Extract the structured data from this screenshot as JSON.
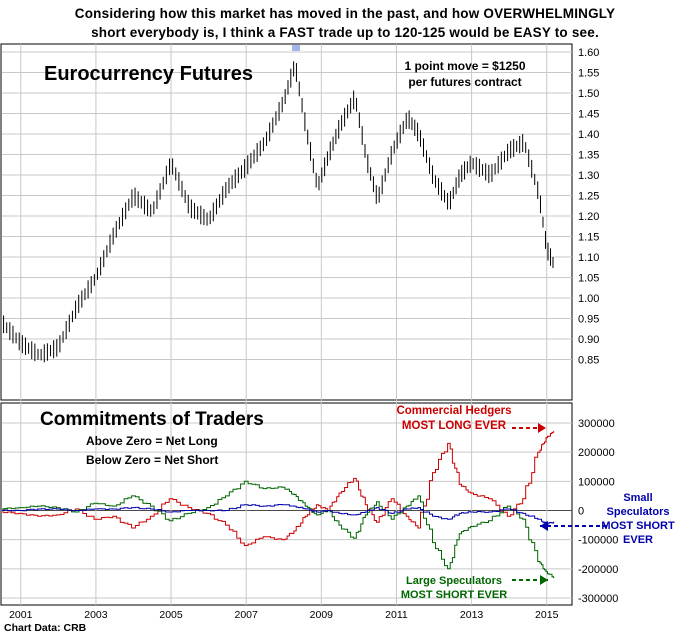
{
  "headline": [
    "Considering how this market has moved in the past, and how OVERWHELMINGLY",
    "short everybody is, I think a FAST trade up to 120-125 would be EASY to see."
  ],
  "credit": "Chart Data: CRB",
  "colors": {
    "price": "#000000",
    "commercials": "#cc0000",
    "large_specs": "#006600",
    "small_specs": "#0000aa",
    "grid": "#c8c8c8",
    "zero_line": "#4a4a4a",
    "peak_highlight": "#9fb7e8"
  },
  "chart_data": [
    {
      "type": "bar",
      "subtype": "ohlc",
      "title": "Eurocurrency Futures",
      "annotation": [
        "1 point move = $1250",
        "per futures contract"
      ],
      "ylim": [
        0.8,
        1.6
      ],
      "yticks": [
        "1.60",
        "1.55",
        "1.50",
        "1.45",
        "1.40",
        "1.35",
        "1.30",
        "1.25",
        "1.20",
        "1.15",
        "1.10",
        "1.05",
        "1.00",
        "0.95",
        "0.90",
        "0.85"
      ],
      "x_range": [
        2000.5,
        2015.3
      ],
      "series": [
        {
          "x": [
            2000.5,
            2001.0,
            2001.5,
            2002.0,
            2002.5,
            2003.0,
            2003.5,
            2004.0,
            2004.5,
            2005.0,
            2005.5,
            2006.0,
            2006.5,
            2007.0,
            2007.5,
            2008.0,
            2008.3,
            2008.6,
            2008.9,
            2009.2,
            2009.5,
            2009.9,
            2010.2,
            2010.5,
            2010.9,
            2011.3,
            2011.6,
            2012.0,
            2012.4,
            2012.7,
            2013.0,
            2013.5,
            2014.0,
            2014.4,
            2014.8,
            2015.0,
            2015.2
          ],
          "close": [
            0.94,
            0.89,
            0.86,
            0.88,
            0.98,
            1.05,
            1.16,
            1.25,
            1.21,
            1.33,
            1.22,
            1.19,
            1.27,
            1.32,
            1.38,
            1.48,
            1.57,
            1.41,
            1.27,
            1.35,
            1.42,
            1.49,
            1.34,
            1.24,
            1.36,
            1.44,
            1.4,
            1.29,
            1.23,
            1.3,
            1.33,
            1.3,
            1.36,
            1.38,
            1.25,
            1.12,
            1.08
          ]
        }
      ]
    },
    {
      "type": "line",
      "title": "Commitments of Traders",
      "annotation": [
        "Above Zero = Net Long",
        "Below Zero = Net Short"
      ],
      "ylim": [
        -300000,
        300000
      ],
      "yticks": [
        "300000",
        "200000",
        "100000",
        "0",
        "-100000",
        "-200000",
        "-300000"
      ],
      "x_range": [
        2000.5,
        2015.3
      ],
      "x_ticks": [
        "2001",
        "2003",
        "2005",
        "2007",
        "2009",
        "2011",
        "2013",
        "2015"
      ],
      "x": [
        2000.5,
        2001.0,
        2001.5,
        2002.0,
        2002.5,
        2003.0,
        2003.5,
        2004.0,
        2004.5,
        2005.0,
        2005.5,
        2006.0,
        2006.5,
        2007.0,
        2007.5,
        2008.0,
        2008.3,
        2008.6,
        2008.9,
        2009.2,
        2009.5,
        2009.9,
        2010.2,
        2010.5,
        2010.9,
        2011.3,
        2011.6,
        2012.0,
        2012.4,
        2012.7,
        2013.0,
        2013.5,
        2014.0,
        2014.4,
        2014.8,
        2015.0,
        2015.2
      ],
      "series": [
        {
          "name": "Commercial Hedgers",
          "values": [
            -5000,
            -10000,
            -20000,
            -15000,
            5000,
            -30000,
            -20000,
            -60000,
            -20000,
            40000,
            10000,
            -10000,
            -50000,
            -120000,
            -90000,
            -100000,
            -70000,
            -20000,
            20000,
            0,
            60000,
            110000,
            20000,
            -40000,
            40000,
            -20000,
            -60000,
            130000,
            230000,
            90000,
            60000,
            40000,
            -20000,
            40000,
            200000,
            250000,
            270000
          ]
        },
        {
          "name": "Large Speculators",
          "values": [
            5000,
            10000,
            15000,
            10000,
            -5000,
            25000,
            15000,
            50000,
            15000,
            -35000,
            -10000,
            10000,
            50000,
            100000,
            75000,
            80000,
            55000,
            15000,
            -15000,
            0,
            -50000,
            -95000,
            -15000,
            30000,
            -30000,
            15000,
            50000,
            -110000,
            -200000,
            -80000,
            -55000,
            -35000,
            15000,
            -30000,
            -175000,
            -210000,
            -230000
          ]
        },
        {
          "name": "Small Speculators",
          "values": [
            0,
            0,
            5000,
            5000,
            0,
            5000,
            5000,
            10000,
            5000,
            -5000,
            0,
            0,
            0,
            20000,
            15000,
            20000,
            15000,
            5000,
            -5000,
            0,
            -10000,
            -15000,
            -5000,
            10000,
            -10000,
            5000,
            10000,
            -20000,
            -30000,
            -10000,
            -5000,
            -5000,
            5000,
            -10000,
            -30000,
            -45000,
            -40000
          ]
        }
      ],
      "labels": {
        "commercials": [
          "Commercial Hedgers",
          "MOST LONG EVER"
        ],
        "small_specs": [
          "Small",
          "Speculators",
          "MOST SHORT",
          "EVER"
        ],
        "large_specs": [
          "Large Speculators",
          "MOST SHORT EVER"
        ]
      }
    }
  ]
}
